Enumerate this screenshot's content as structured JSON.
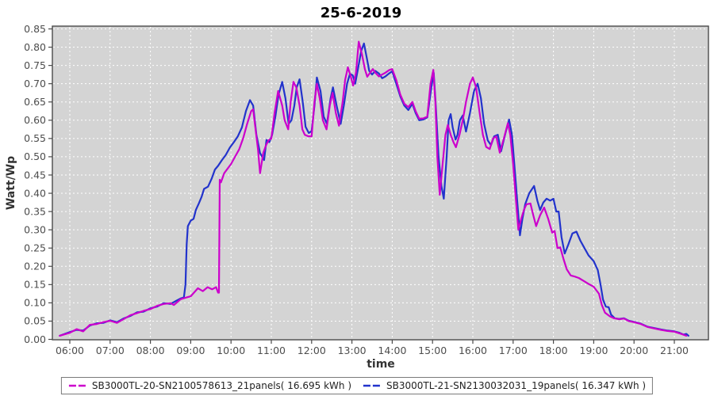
{
  "title": "25-6-2019",
  "chart_data": {
    "type": "line",
    "title": "25-6-2019",
    "xlabel": "time",
    "ylabel": "Watt/Wp",
    "grid": true,
    "legend_position": "bottom",
    "plot_background": "#d4d4d4",
    "grid_color": "#ffffff",
    "border_color": "#4a4a4a",
    "ylim": [
      0,
      0.85
    ],
    "y_tick_step": 0.05,
    "y_ticks": [
      "0.00",
      "0.05",
      "0.10",
      "0.15",
      "0.20",
      "0.25",
      "0.30",
      "0.35",
      "0.40",
      "0.45",
      "0.50",
      "0.55",
      "0.60",
      "0.65",
      "0.70",
      "0.75",
      "0.80",
      "0.85"
    ],
    "x_ticks": [
      "06:00",
      "07:00",
      "08:00",
      "09:00",
      "10:00",
      "11:00",
      "12:00",
      "13:00",
      "14:00",
      "15:00",
      "16:00",
      "17:00",
      "18:00",
      "19:00",
      "20:00",
      "21:00"
    ],
    "x_tick_hours": [
      6,
      7,
      8,
      9,
      10,
      11,
      12,
      13,
      14,
      15,
      16,
      17,
      18,
      19,
      20,
      21
    ],
    "series": [
      {
        "name": "SB3000TL-20-SN2100578613_21panels( 16.695 kWh )",
        "color": "#cc00cc",
        "x": [
          5.75,
          6.0,
          6.17,
          6.33,
          6.5,
          6.67,
          6.83,
          7.0,
          7.17,
          7.33,
          7.5,
          7.67,
          7.83,
          8.0,
          8.17,
          8.33,
          8.5,
          8.58,
          8.75,
          8.87,
          9.0,
          9.18,
          9.3,
          9.42,
          9.53,
          9.63,
          9.68,
          9.7,
          9.72,
          9.75,
          9.83,
          10.0,
          10.1,
          10.2,
          10.3,
          10.4,
          10.5,
          10.55,
          10.67,
          10.72,
          10.8,
          10.87,
          10.93,
          11.0,
          11.08,
          11.17,
          11.27,
          11.33,
          11.42,
          11.48,
          11.55,
          11.62,
          11.7,
          11.77,
          11.83,
          11.92,
          12.0,
          12.07,
          12.13,
          12.2,
          12.28,
          12.37,
          12.45,
          12.52,
          12.6,
          12.68,
          12.77,
          12.83,
          12.9,
          12.97,
          13.03,
          13.1,
          13.17,
          13.25,
          13.32,
          13.38,
          13.45,
          13.52,
          13.58,
          13.67,
          13.75,
          13.83,
          13.92,
          14.0,
          14.1,
          14.2,
          14.3,
          14.4,
          14.5,
          14.58,
          14.67,
          14.77,
          14.87,
          14.95,
          15.02,
          15.07,
          15.12,
          15.18,
          15.25,
          15.32,
          15.38,
          15.45,
          15.52,
          15.58,
          15.67,
          15.75,
          15.83,
          15.93,
          16.0,
          16.08,
          16.17,
          16.25,
          16.33,
          16.42,
          16.5,
          16.58,
          16.67,
          16.77,
          16.87,
          16.93,
          17.0,
          17.07,
          17.13,
          17.2,
          17.27,
          17.33,
          17.43,
          17.5,
          17.57,
          17.67,
          17.77,
          17.87,
          17.97,
          18.03,
          18.1,
          18.17,
          18.25,
          18.33,
          18.43,
          18.53,
          18.63,
          18.75,
          18.87,
          19.0,
          19.13,
          19.2,
          19.28,
          19.4,
          19.5,
          19.63,
          19.75,
          19.87,
          20.0,
          20.17,
          20.33,
          20.5,
          20.67,
          20.83,
          21.0,
          21.17,
          21.3
        ],
        "y": [
          0.01,
          0.018,
          0.028,
          0.022,
          0.04,
          0.042,
          0.047,
          0.051,
          0.045,
          0.055,
          0.066,
          0.072,
          0.078,
          0.083,
          0.092,
          0.097,
          0.099,
          0.094,
          0.11,
          0.114,
          0.118,
          0.14,
          0.132,
          0.143,
          0.137,
          0.143,
          0.128,
          0.128,
          0.437,
          0.43,
          0.455,
          0.48,
          0.5,
          0.52,
          0.55,
          0.59,
          0.625,
          0.63,
          0.52,
          0.455,
          0.51,
          0.532,
          0.545,
          0.55,
          0.62,
          0.68,
          0.64,
          0.6,
          0.575,
          0.65,
          0.705,
          0.69,
          0.64,
          0.575,
          0.56,
          0.556,
          0.556,
          0.65,
          0.7,
          0.66,
          0.6,
          0.575,
          0.64,
          0.675,
          0.62,
          0.585,
          0.65,
          0.71,
          0.745,
          0.72,
          0.695,
          0.73,
          0.815,
          0.78,
          0.74,
          0.719,
          0.73,
          0.74,
          0.73,
          0.72,
          0.725,
          0.73,
          0.737,
          0.74,
          0.71,
          0.67,
          0.645,
          0.636,
          0.65,
          0.625,
          0.604,
          0.605,
          0.61,
          0.7,
          0.738,
          0.65,
          0.5,
          0.396,
          0.48,
          0.56,
          0.587,
          0.56,
          0.54,
          0.526,
          0.56,
          0.6,
          0.65,
          0.7,
          0.717,
          0.69,
          0.62,
          0.56,
          0.527,
          0.521,
          0.55,
          0.556,
          0.511,
          0.55,
          0.592,
          0.56,
          0.48,
          0.38,
          0.3,
          0.33,
          0.355,
          0.37,
          0.372,
          0.34,
          0.31,
          0.34,
          0.361,
          0.33,
          0.292,
          0.297,
          0.25,
          0.252,
          0.22,
          0.192,
          0.175,
          0.172,
          0.168,
          0.16,
          0.152,
          0.144,
          0.125,
          0.094,
          0.073,
          0.063,
          0.058,
          0.055,
          0.057,
          0.05,
          0.047,
          0.042,
          0.034,
          0.03,
          0.026,
          0.023,
          0.021,
          0.015,
          0.01
        ]
      },
      {
        "name": "SB3000TL-21-SN2130032031_19panels( 16.347 kWh )",
        "color": "#2233cc",
        "x": [
          5.75,
          6.0,
          6.17,
          6.33,
          6.5,
          6.67,
          6.83,
          7.0,
          7.17,
          7.33,
          7.5,
          7.67,
          7.83,
          8.0,
          8.17,
          8.33,
          8.5,
          8.63,
          8.75,
          8.83,
          8.87,
          8.9,
          8.93,
          9.0,
          9.07,
          9.13,
          9.2,
          9.27,
          9.33,
          9.43,
          9.52,
          9.6,
          9.68,
          9.77,
          9.87,
          9.97,
          10.07,
          10.17,
          10.27,
          10.37,
          10.47,
          10.55,
          10.63,
          10.72,
          10.82,
          10.88,
          10.95,
          11.02,
          11.1,
          11.18,
          11.27,
          11.35,
          11.43,
          11.5,
          11.57,
          11.63,
          11.7,
          11.78,
          11.85,
          11.93,
          12.0,
          12.07,
          12.13,
          12.22,
          12.3,
          12.38,
          12.47,
          12.53,
          12.62,
          12.72,
          12.8,
          12.88,
          12.95,
          13.02,
          13.08,
          13.15,
          13.23,
          13.3,
          13.37,
          13.43,
          13.5,
          13.58,
          13.67,
          13.75,
          13.83,
          13.92,
          14.0,
          14.1,
          14.2,
          14.3,
          14.4,
          14.5,
          14.58,
          14.67,
          14.77,
          14.87,
          14.97,
          15.03,
          15.08,
          15.15,
          15.22,
          15.28,
          15.35,
          15.4,
          15.45,
          15.5,
          15.57,
          15.62,
          15.68,
          15.75,
          15.83,
          15.93,
          16.03,
          16.12,
          16.2,
          16.28,
          16.37,
          16.45,
          16.53,
          16.62,
          16.7,
          16.8,
          16.9,
          16.97,
          17.03,
          17.1,
          17.17,
          17.23,
          17.3,
          17.4,
          17.52,
          17.6,
          17.67,
          17.75,
          17.83,
          17.92,
          18.0,
          18.07,
          18.13,
          18.2,
          18.28,
          18.37,
          18.47,
          18.57,
          18.67,
          18.77,
          18.87,
          19.0,
          19.1,
          19.17,
          19.23,
          19.3,
          19.37,
          19.43,
          19.52,
          19.63,
          19.75,
          19.87,
          20.0,
          20.17,
          20.33,
          20.5,
          20.67,
          20.83,
          21.0,
          21.13,
          21.23,
          21.3,
          21.35
        ],
        "y": [
          0.01,
          0.02,
          0.026,
          0.024,
          0.038,
          0.044,
          0.045,
          0.052,
          0.047,
          0.057,
          0.064,
          0.074,
          0.076,
          0.085,
          0.09,
          0.099,
          0.097,
          0.105,
          0.112,
          0.115,
          0.15,
          0.26,
          0.31,
          0.325,
          0.33,
          0.355,
          0.372,
          0.39,
          0.412,
          0.418,
          0.44,
          0.465,
          0.475,
          0.49,
          0.505,
          0.525,
          0.54,
          0.556,
          0.58,
          0.625,
          0.655,
          0.64,
          0.56,
          0.51,
          0.491,
          0.546,
          0.54,
          0.56,
          0.61,
          0.67,
          0.705,
          0.66,
          0.59,
          0.6,
          0.64,
          0.69,
          0.712,
          0.65,
          0.582,
          0.565,
          0.57,
          0.64,
          0.717,
          0.68,
          0.61,
          0.59,
          0.66,
          0.69,
          0.64,
          0.59,
          0.64,
          0.7,
          0.727,
          0.723,
          0.7,
          0.74,
          0.79,
          0.81,
          0.77,
          0.735,
          0.725,
          0.735,
          0.728,
          0.715,
          0.72,
          0.728,
          0.734,
          0.7,
          0.665,
          0.64,
          0.628,
          0.645,
          0.62,
          0.6,
          0.602,
          0.608,
          0.69,
          0.73,
          0.64,
          0.5,
          0.42,
          0.385,
          0.5,
          0.6,
          0.617,
          0.58,
          0.547,
          0.56,
          0.6,
          0.613,
          0.569,
          0.62,
          0.68,
          0.7,
          0.66,
          0.59,
          0.545,
          0.532,
          0.556,
          0.56,
          0.515,
          0.56,
          0.602,
          0.56,
          0.48,
          0.38,
          0.285,
          0.33,
          0.37,
          0.4,
          0.42,
          0.38,
          0.354,
          0.375,
          0.385,
          0.38,
          0.385,
          0.35,
          0.35,
          0.28,
          0.235,
          0.26,
          0.29,
          0.295,
          0.27,
          0.25,
          0.23,
          0.214,
          0.19,
          0.15,
          0.109,
          0.09,
          0.088,
          0.068,
          0.058,
          0.056,
          0.058,
          0.051,
          0.048,
          0.043,
          0.035,
          0.031,
          0.027,
          0.024,
          0.022,
          0.018,
          0.013,
          0.015,
          0.01
        ]
      }
    ]
  }
}
